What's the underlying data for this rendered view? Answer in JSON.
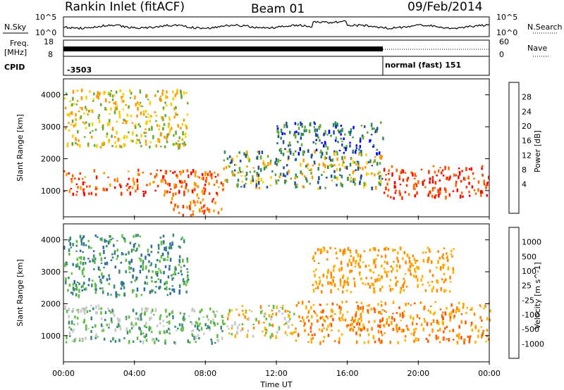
{
  "header": {
    "station": "Rankin Inlet (fitACF)",
    "beam": "Beam 01",
    "date": "09/Feb/2014"
  },
  "status": {
    "nsky_label": "N.Sky",
    "nsearch_label": "N.Search",
    "nsky_ticks": [
      "10^5",
      "10^0"
    ],
    "nsearch_ticks": [
      "10^5",
      "10^0"
    ],
    "freq_label": "Freq.",
    "freq_unit": "[MHz]",
    "freq_ticks": [
      "18",
      "8"
    ],
    "nave_label": "Nave",
    "nave_ticks": [
      "60",
      "0"
    ],
    "cpid_label": "CPID",
    "cpid_first": "-3503",
    "cpid_second": "normal (fast) 151",
    "cpid_switch_hour": 18
  },
  "chart_data": [
    {
      "type": "heatmap",
      "name": "power",
      "ylabel": "Slant Range [km]",
      "ylim": [
        180,
        4500
      ],
      "yticks": [
        1000,
        2000,
        3000,
        4000
      ],
      "xlim": [
        0,
        24
      ],
      "colorbar": {
        "label": "Power [dB]",
        "ticks": [
          "28",
          "24",
          "20",
          "16",
          "12",
          "8",
          "4"
        ],
        "colors": [
          "#ff0000",
          "#ff3300",
          "#ff6600",
          "#ff9900",
          "#ffcc00",
          "#66aa33",
          "#2e8b57",
          "#1f4e9b",
          "#0000ff"
        ]
      }
    },
    {
      "type": "heatmap",
      "name": "velocity",
      "ylabel": "Slant Range [km]",
      "ylim": [
        180,
        4500
      ],
      "yticks": [
        1000,
        2000,
        3000,
        4000
      ],
      "xlim": [
        0,
        24
      ],
      "xlabel": "Time UT",
      "xtick_labels": [
        "00:00",
        "04:00",
        "08:00",
        "12:00",
        "16:00",
        "20:00",
        "00:00"
      ],
      "colorbar": {
        "label": "Velocity [m s^-1]",
        "ticks": [
          "1000",
          "500",
          "100",
          "25",
          "-25",
          "-100",
          "-500",
          "-1000"
        ],
        "colors": [
          "#1a3ca8",
          "#2e6d9e",
          "#3a8d6e",
          "#5fbf3f",
          "#c8c8c8",
          "#ffb000",
          "#ff8800",
          "#ff5500",
          "#ff0000"
        ]
      }
    }
  ]
}
